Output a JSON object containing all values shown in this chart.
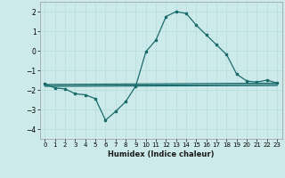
{
  "xlabel": "Humidex (Indice chaleur)",
  "background_color": "#cdeaea",
  "grid_color": "#bbdddd",
  "line_color": "#1a6b6b",
  "xlim": [
    -0.5,
    23.5
  ],
  "ylim": [
    -4.5,
    2.5
  ],
  "yticks": [
    -4,
    -3,
    -2,
    -1,
    0,
    1,
    2
  ],
  "xticks": [
    0,
    1,
    2,
    3,
    4,
    5,
    6,
    7,
    8,
    9,
    10,
    11,
    12,
    13,
    14,
    15,
    16,
    17,
    18,
    19,
    20,
    21,
    22,
    23
  ],
  "main_x": [
    0,
    1,
    2,
    3,
    4,
    5,
    6,
    7,
    8,
    9,
    10,
    11,
    12,
    13,
    14,
    15,
    16,
    17,
    18,
    19,
    20,
    21,
    22,
    23
  ],
  "main_y": [
    -1.7,
    -1.9,
    -1.95,
    -2.2,
    -2.25,
    -2.45,
    -3.55,
    -3.1,
    -2.6,
    -1.8,
    -0.05,
    0.55,
    1.75,
    2.0,
    1.9,
    1.3,
    0.8,
    0.3,
    -0.2,
    -1.2,
    -1.55,
    -1.6,
    -1.5,
    -1.65
  ],
  "line1_x": [
    0,
    23
  ],
  "line1_y": [
    -1.72,
    -1.65
  ],
  "line2_x": [
    0,
    23
  ],
  "line2_y": [
    -1.78,
    -1.72
  ],
  "line3_x": [
    0,
    23
  ],
  "line3_y": [
    -1.82,
    -1.78
  ]
}
